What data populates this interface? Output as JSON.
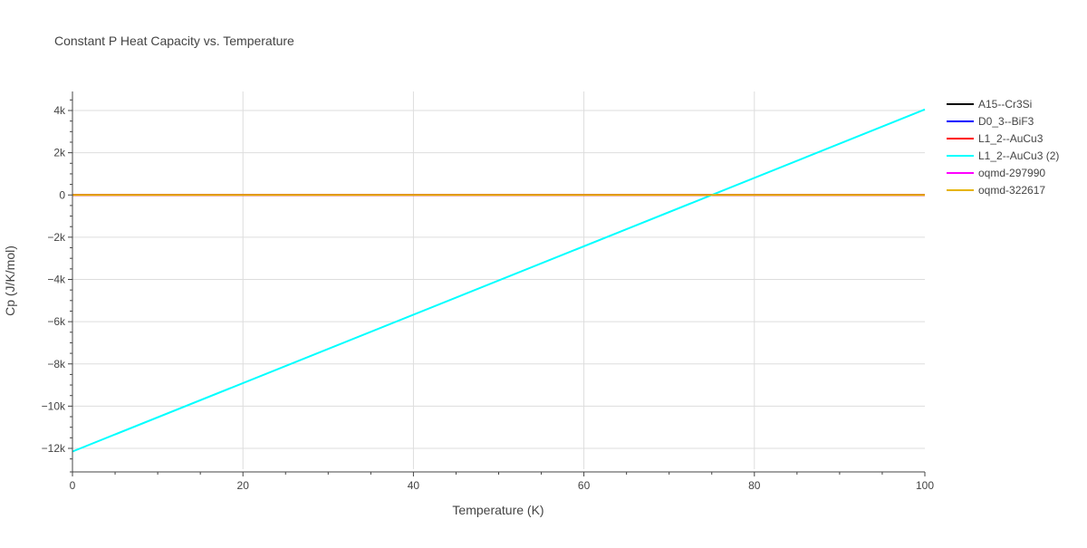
{
  "chart_data": {
    "type": "line",
    "title": "Constant P Heat Capacity vs. Temperature",
    "xlabel": "Temperature (K)",
    "ylabel": "Cp (J/K/mol)",
    "xlim": [
      0,
      100
    ],
    "ylim": [
      -13000,
      5000
    ],
    "x_ticks": [
      0,
      20,
      40,
      60,
      80,
      100
    ],
    "x_tick_labels": [
      "0",
      "20",
      "40",
      "60",
      "80",
      "100"
    ],
    "y_ticks": [
      -12000,
      -10000,
      -8000,
      -6000,
      -4000,
      -2000,
      0,
      2000,
      4000
    ],
    "y_tick_labels": [
      "−12k",
      "−10k",
      "−8k",
      "−6k",
      "−4k",
      "−2k",
      "0",
      "2k",
      "4k"
    ],
    "grid": true,
    "legend_position": "right",
    "series": [
      {
        "name": "A15--Cr3Si",
        "color": "#000000",
        "x": [
          0,
          100
        ],
        "y": [
          0,
          0
        ]
      },
      {
        "name": "D0_3--BiF3",
        "color": "#0000ff",
        "x": [
          0,
          100
        ],
        "y": [
          0,
          0
        ]
      },
      {
        "name": "L1_2--AuCu3",
        "color": "#ff0000",
        "x": [
          0,
          100
        ],
        "y": [
          0,
          0
        ]
      },
      {
        "name": "L1_2--AuCu3 (2)",
        "color": "#00ffff",
        "x": [
          0,
          100
        ],
        "y": [
          -12150,
          4050
        ]
      },
      {
        "name": "oqmd-297990",
        "color": "#ff00ff",
        "x": [
          0,
          100
        ],
        "y": [
          0,
          0
        ]
      },
      {
        "name": "oqmd-322617",
        "color": "#e6b400",
        "x": [
          0,
          100
        ],
        "y": [
          0,
          0
        ]
      }
    ]
  }
}
